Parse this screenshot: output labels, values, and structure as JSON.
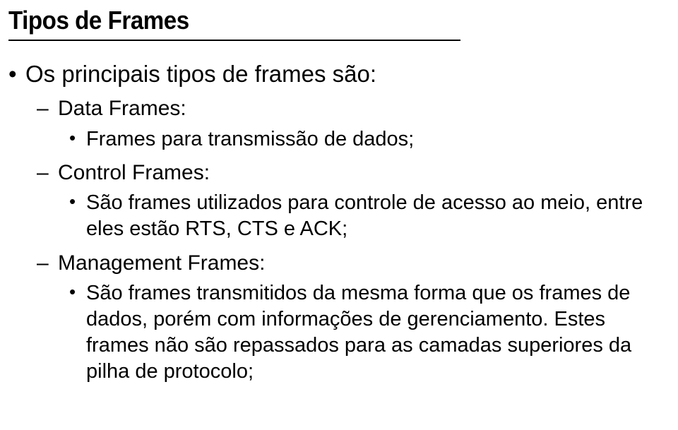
{
  "slide": {
    "title": "Tipos de Frames",
    "bullet1": "Os principais tipos de frames são:",
    "sub1": "Data Frames:",
    "sub1_detail": "Frames para transmissão de dados;",
    "sub2": "Control Frames:",
    "sub2_detail": "São frames utilizados para controle de acesso ao meio, entre eles estão RTS, CTS e ACK;",
    "sub3": "Management Frames:",
    "sub3_detail": "São frames transmitidos da mesma forma que os frames de dados, porém com informações de gerenciamento. Estes frames não são repassados para as camadas superiores da pilha de protocolo;"
  },
  "style": {
    "bg": "#ffffff",
    "text": "#000000",
    "title_fontsize": 36,
    "body_fontsize": 33,
    "sub_fontsize": 30,
    "detail_fontsize": 29,
    "rule_color": "#000000"
  }
}
